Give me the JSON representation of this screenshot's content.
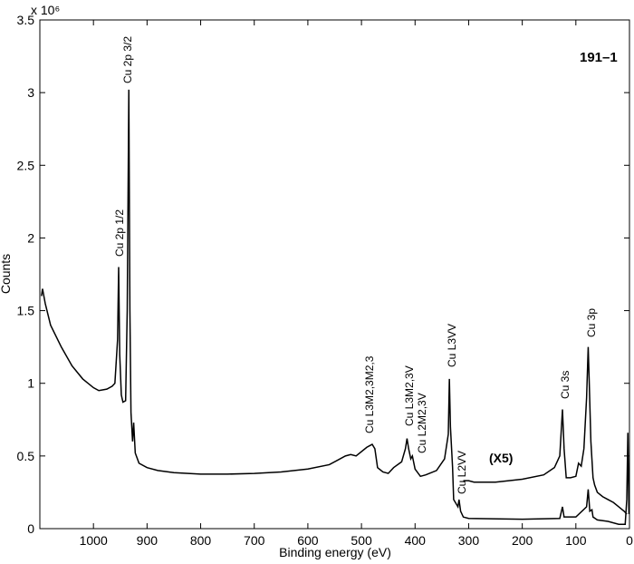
{
  "chart_data": {
    "type": "line",
    "exponent_label": "x 10⁶",
    "ylabel": "Counts",
    "xlabel": "Binding energy (eV)",
    "tag": "191–1",
    "xlim": [
      1100,
      0
    ],
    "ylim": [
      0,
      3.5
    ],
    "xticks": [
      1000,
      900,
      800,
      700,
      600,
      500,
      400,
      300,
      200,
      100,
      0
    ],
    "yticks": [
      0,
      0.5,
      1,
      1.5,
      2,
      2.5,
      3,
      3.5
    ],
    "grid": false,
    "series": [
      {
        "name": null,
        "color": "#000000",
        "x": [
          1097,
          1095,
          1090,
          1080,
          1060,
          1040,
          1020,
          1000,
          990,
          975,
          965,
          960,
          955,
          953,
          951,
          948,
          945,
          940,
          937,
          934,
          932,
          930,
          927,
          925,
          922,
          915,
          900,
          880,
          850,
          800,
          750,
          700,
          650,
          600,
          560,
          530,
          520,
          510,
          490,
          480,
          475,
          470,
          460,
          450,
          440,
          425,
          418,
          415,
          412,
          408,
          405,
          400,
          390,
          380,
          360,
          345,
          338,
          336,
          334,
          330,
          328,
          320,
          318,
          315,
          310,
          300,
          200,
          130,
          125,
          122,
          100,
          80,
          77,
          74,
          70,
          68,
          60,
          40,
          20,
          8,
          5,
          3,
          1
        ],
        "values": [
          1.6,
          1.65,
          1.55,
          1.4,
          1.25,
          1.12,
          1.03,
          0.97,
          0.95,
          0.96,
          0.98,
          1.0,
          1.3,
          1.8,
          1.2,
          0.92,
          0.87,
          0.88,
          1.5,
          3.02,
          1.5,
          0.8,
          0.6,
          0.73,
          0.52,
          0.45,
          0.42,
          0.4,
          0.385,
          0.375,
          0.375,
          0.38,
          0.39,
          0.41,
          0.44,
          0.5,
          0.51,
          0.5,
          0.56,
          0.58,
          0.55,
          0.42,
          0.39,
          0.38,
          0.42,
          0.46,
          0.55,
          0.62,
          0.55,
          0.48,
          0.5,
          0.41,
          0.36,
          0.37,
          0.4,
          0.48,
          0.65,
          1.03,
          0.7,
          0.42,
          0.2,
          0.15,
          0.2,
          0.12,
          0.08,
          0.07,
          0.065,
          0.07,
          0.15,
          0.08,
          0.08,
          0.15,
          0.27,
          0.12,
          0.13,
          0.08,
          0.06,
          0.05,
          0.03,
          0.03,
          0.2,
          0.66,
          0.1
        ]
      },
      {
        "name": null,
        "color": "#000000",
        "x": [
          310,
          300,
          290,
          250,
          200,
          160,
          140,
          130,
          125,
          122,
          118,
          110,
          100,
          95,
          90,
          85,
          80,
          77,
          75,
          72,
          68,
          65,
          60,
          50,
          40,
          30,
          20,
          10,
          5
        ],
        "values": [
          0.33,
          0.33,
          0.32,
          0.32,
          0.34,
          0.37,
          0.42,
          0.5,
          0.82,
          0.55,
          0.35,
          0.35,
          0.36,
          0.45,
          0.43,
          0.55,
          0.9,
          1.25,
          1.0,
          0.6,
          0.35,
          0.3,
          0.25,
          0.22,
          0.2,
          0.18,
          0.15,
          0.12,
          0.1
        ]
      }
    ],
    "annotations": [
      "Cu 2p 3/2",
      "Cu 2p 1/2",
      "Cu L3M2,3M2,3",
      "Cu L3M2,3V",
      "Cu L2M2,3V",
      "Cu L3VV",
      "Cu L2VV",
      "Cu 3s",
      "Cu 3p",
      "(X5)"
    ]
  }
}
